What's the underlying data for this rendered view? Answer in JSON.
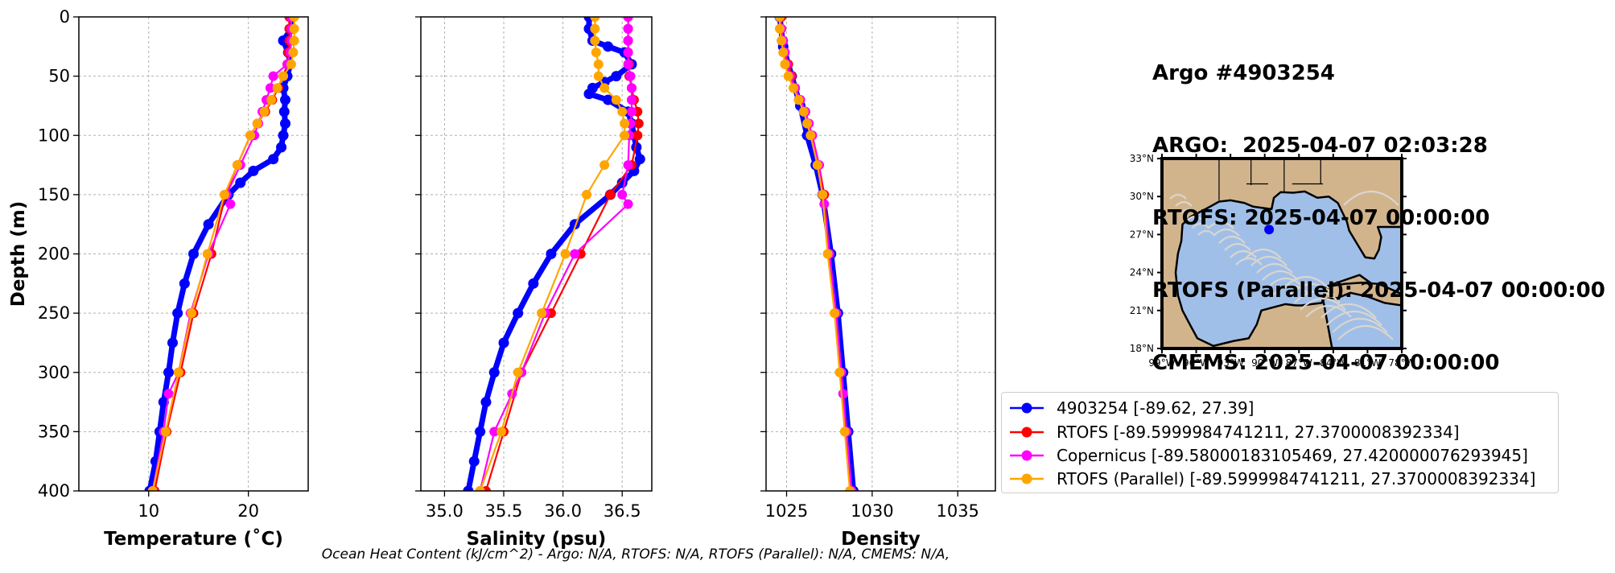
{
  "title_lines": [
    "Argo #4903254",
    "ARGO:  2025-04-07 02:03:28",
    "RTOFS: 2025-04-07 00:00:00",
    "RTOFS (Parallel): 2025-04-07 00:00:00",
    "CMEMS: 2025-04-07 00:00:00"
  ],
  "footer": "Ocean Heat Content (kJ/cm^2) - Argo: N/A,  RTOFS: N/A,  RTOFS (Parallel): N/A,  CMEMS: N/A,",
  "colors": {
    "argo": "#0000ff",
    "rtofs": "#ff0000",
    "copernicus": "#ff00ff",
    "rtofs_parallel": "#ffa500",
    "land": "#d2b48c",
    "ocean": "#a0bfe8",
    "stream": "#d9d6cf"
  },
  "legend": [
    {
      "label": "4903254 [-89.62, 27.39]",
      "color": "#0000ff"
    },
    {
      "label": "RTOFS [-89.5999984741211, 27.3700008392334]",
      "color": "#ff0000"
    },
    {
      "label": "Copernicus [-89.58000183105469, 27.420000076293945]",
      "color": "#ff00ff"
    },
    {
      "label": "RTOFS (Parallel) [-89.5999984741211, 27.3700008392334]",
      "color": "#ffa500"
    }
  ],
  "chart_data": [
    {
      "type": "line",
      "xlabel": "Temperature (˚C)",
      "ylabel": "Depth (m)",
      "xlim": [
        3,
        26
      ],
      "ylim": [
        400,
        0
      ],
      "xticks": [
        10,
        20
      ],
      "yticks": [
        0,
        50,
        100,
        150,
        200,
        250,
        300,
        350,
        400
      ],
      "grid": true,
      "series": [
        {
          "name": "4903254",
          "depth": [
            0,
            10,
            20,
            30,
            40,
            50,
            60,
            70,
            80,
            90,
            100,
            110,
            120,
            130,
            140,
            150,
            175,
            200,
            225,
            250,
            275,
            300,
            325,
            350,
            375,
            400
          ],
          "values": [
            24.3,
            24.3,
            23.5,
            24.0,
            24.2,
            23.9,
            23.5,
            23.7,
            23.6,
            23.7,
            23.5,
            23.3,
            22.5,
            20.5,
            19.2,
            18.0,
            16.0,
            14.5,
            13.6,
            12.9,
            12.4,
            12.0,
            11.5,
            11.1,
            10.7,
            10.1
          ]
        },
        {
          "name": "RTOFS",
          "depth": [
            0,
            10,
            20,
            30,
            40,
            50,
            60,
            70,
            80,
            90,
            100,
            125,
            150,
            200,
            250,
            300,
            350,
            400
          ],
          "values": [
            24.1,
            24.1,
            24.1,
            24.0,
            23.9,
            23.5,
            23.0,
            22.4,
            21.7,
            20.9,
            20.2,
            18.9,
            17.7,
            16.3,
            14.5,
            13.2,
            11.8,
            10.6
          ]
        },
        {
          "name": "Copernicus",
          "depth": [
            0,
            10,
            20,
            30,
            40,
            50,
            60,
            70,
            80,
            90,
            100,
            125,
            150,
            158,
            200,
            250,
            300,
            318,
            350,
            400
          ],
          "values": [
            24.3,
            24.3,
            24.3,
            24.2,
            23.9,
            22.5,
            22.2,
            21.8,
            21.4,
            21.0,
            20.6,
            19.2,
            17.8,
            18.2,
            16.0,
            14.2,
            13.0,
            12.0,
            11.5,
            10.4
          ]
        },
        {
          "name": "RTOFS (Parallel)",
          "depth": [
            0,
            10,
            20,
            30,
            40,
            50,
            60,
            70,
            80,
            90,
            100,
            125,
            150,
            200,
            250,
            300,
            350,
            400
          ],
          "values": [
            24.6,
            24.6,
            24.6,
            24.5,
            24.3,
            23.5,
            22.9,
            22.3,
            21.6,
            20.9,
            20.2,
            18.9,
            17.6,
            15.9,
            14.3,
            13.0,
            11.7,
            10.4
          ]
        }
      ]
    },
    {
      "type": "line",
      "xlabel": "Salinity (psu)",
      "ylabel": "",
      "xlim": [
        34.8,
        36.75
      ],
      "ylim": [
        400,
        0
      ],
      "xticks": [
        35.0,
        35.5,
        36.0,
        36.5
      ],
      "xticklabels": [
        "35.0",
        "35.5",
        "36.0",
        "36.5"
      ],
      "yticks": [
        0,
        50,
        100,
        150,
        200,
        250,
        300,
        350,
        400
      ],
      "grid": true,
      "series": [
        {
          "name": "4903254",
          "depth": [
            0,
            10,
            20,
            25,
            30,
            40,
            50,
            55,
            60,
            65,
            70,
            80,
            90,
            100,
            110,
            120,
            130,
            140,
            150,
            175,
            200,
            225,
            250,
            275,
            300,
            325,
            350,
            375,
            400
          ],
          "values": [
            36.22,
            36.22,
            36.25,
            36.38,
            36.52,
            36.58,
            36.45,
            36.35,
            36.25,
            36.22,
            36.38,
            36.55,
            36.58,
            36.6,
            36.62,
            36.65,
            36.6,
            36.5,
            36.4,
            36.1,
            35.9,
            35.75,
            35.62,
            35.5,
            35.42,
            35.35,
            35.3,
            35.25,
            35.2
          ]
        },
        {
          "name": "RTOFS",
          "depth": [
            0,
            10,
            20,
            30,
            40,
            50,
            60,
            70,
            80,
            90,
            100,
            125,
            150,
            200,
            250,
            300,
            350,
            400
          ],
          "values": [
            36.55,
            36.55,
            36.55,
            36.55,
            36.56,
            36.56,
            36.58,
            36.6,
            36.63,
            36.64,
            36.63,
            36.58,
            36.4,
            36.15,
            35.9,
            35.65,
            35.5,
            35.35
          ]
        },
        {
          "name": "Copernicus",
          "depth": [
            0,
            10,
            20,
            30,
            40,
            50,
            60,
            70,
            80,
            90,
            100,
            125,
            150,
            158,
            200,
            250,
            300,
            318,
            350,
            400
          ],
          "values": [
            36.55,
            36.55,
            36.55,
            36.55,
            36.55,
            36.57,
            36.58,
            36.58,
            36.58,
            36.57,
            36.56,
            36.55,
            36.5,
            36.55,
            36.1,
            35.85,
            35.65,
            35.57,
            35.42,
            35.3
          ]
        },
        {
          "name": "RTOFS (Parallel)",
          "depth": [
            0,
            10,
            20,
            30,
            40,
            50,
            60,
            70,
            80,
            90,
            100,
            125,
            150,
            200,
            250,
            300,
            350,
            400
          ],
          "values": [
            36.27,
            36.27,
            36.27,
            36.28,
            36.3,
            36.3,
            36.35,
            36.45,
            36.5,
            36.52,
            36.52,
            36.35,
            36.2,
            36.02,
            35.82,
            35.62,
            35.48,
            35.3
          ]
        }
      ]
    },
    {
      "type": "line",
      "xlabel": "Density",
      "ylabel": "",
      "xlim": [
        1023.8,
        1037.2
      ],
      "ylim": [
        400,
        0
      ],
      "xticks": [
        1025,
        1030,
        1035
      ],
      "yticks": [
        0,
        50,
        100,
        150,
        200,
        250,
        300,
        350,
        400
      ],
      "grid": true,
      "series": [
        {
          "name": "4903254",
          "depth": [
            0,
            25,
            50,
            75,
            100,
            125,
            150,
            200,
            250,
            300,
            350,
            400
          ],
          "values": [
            1024.6,
            1024.8,
            1025.3,
            1025.8,
            1026.2,
            1026.7,
            1027.1,
            1027.6,
            1028.0,
            1028.3,
            1028.6,
            1028.9
          ]
        },
        {
          "name": "RTOFS",
          "depth": [
            0,
            10,
            20,
            30,
            40,
            50,
            60,
            70,
            80,
            90,
            100,
            125,
            150,
            200,
            250,
            300,
            350,
            400
          ],
          "values": [
            1024.7,
            1024.7,
            1024.8,
            1024.9,
            1025.1,
            1025.3,
            1025.5,
            1025.8,
            1026.1,
            1026.3,
            1026.5,
            1026.9,
            1027.2,
            1027.5,
            1027.9,
            1028.2,
            1028.5,
            1028.8
          ]
        },
        {
          "name": "Copernicus",
          "depth": [
            0,
            10,
            20,
            30,
            40,
            50,
            60,
            70,
            80,
            90,
            100,
            125,
            150,
            158,
            200,
            250,
            300,
            318,
            350,
            400
          ],
          "values": [
            1024.6,
            1024.7,
            1024.8,
            1024.9,
            1025.0,
            1025.2,
            1025.5,
            1025.8,
            1026.1,
            1026.3,
            1026.5,
            1026.9,
            1027.1,
            1027.2,
            1027.5,
            1027.9,
            1028.2,
            1028.3,
            1028.5,
            1028.8
          ]
        },
        {
          "name": "RTOFS (Parallel)",
          "depth": [
            0,
            10,
            20,
            30,
            40,
            50,
            60,
            70,
            80,
            90,
            100,
            125,
            150,
            200,
            250,
            300,
            350,
            400
          ],
          "values": [
            1024.6,
            1024.6,
            1024.7,
            1024.8,
            1024.9,
            1025.1,
            1025.4,
            1025.7,
            1026.0,
            1026.2,
            1026.4,
            1026.8,
            1027.1,
            1027.4,
            1027.8,
            1028.1,
            1028.4,
            1028.7
          ]
        }
      ]
    }
  ],
  "map": {
    "lat_range": [
      18,
      33
    ],
    "lon_range": [
      -99,
      -78
    ],
    "lat_ticks": [
      "33°N",
      "30°N",
      "27°N",
      "24°N",
      "21°N",
      "18°N"
    ],
    "lon_ticks": [
      "99°W",
      "96°W",
      "93°W",
      "90°W",
      "87°W",
      "84°W",
      "81°W",
      "78°W"
    ],
    "float_position": {
      "lon": -89.62,
      "lat": 27.39
    }
  }
}
